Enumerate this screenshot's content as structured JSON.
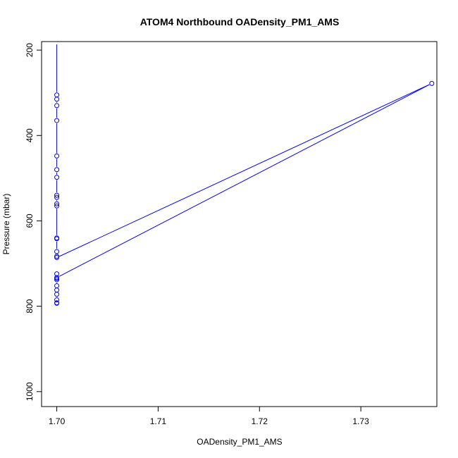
{
  "chart_data": {
    "type": "scatter",
    "title": "ATOM4 Northbound OADensity_PM1_AMS",
    "xlabel": "OADensity_PM1_AMS",
    "ylabel": "Pressure (mbar)",
    "xlim": [
      1.6985,
      1.7375
    ],
    "ylim": [
      1035,
      180
    ],
    "y_reversed": true,
    "x_ticks": [
      1.7,
      1.71,
      1.72,
      1.73
    ],
    "x_tick_labels": [
      "1.70",
      "1.71",
      "1.72",
      "1.73"
    ],
    "y_ticks": [
      200,
      400,
      600,
      800,
      1000
    ],
    "y_tick_labels": [
      "200",
      "400",
      "600",
      "800",
      "1000"
    ],
    "grid": false,
    "series": [
      {
        "color": "#0000ff",
        "marker": "open-circle",
        "line": true,
        "points": [
          {
            "x": 1.7,
            "y": 180
          },
          {
            "x": 1.7,
            "y": 305
          },
          {
            "x": 1.7,
            "y": 315
          },
          {
            "x": 1.7,
            "y": 330
          },
          {
            "x": 1.7,
            "y": 365
          },
          {
            "x": 1.7,
            "y": 448
          },
          {
            "x": 1.7,
            "y": 480
          },
          {
            "x": 1.7,
            "y": 498
          },
          {
            "x": 1.7,
            "y": 540
          },
          {
            "x": 1.7,
            "y": 545
          },
          {
            "x": 1.7,
            "y": 560
          },
          {
            "x": 1.7,
            "y": 565
          },
          {
            "x": 1.7,
            "y": 640
          },
          {
            "x": 1.7,
            "y": 642
          },
          {
            "x": 1.7,
            "y": 672
          },
          {
            "x": 1.7,
            "y": 683
          },
          {
            "x": 1.7,
            "y": 686
          },
          {
            "x": 1.737,
            "y": 278
          },
          {
            "x": 1.7,
            "y": 733
          },
          {
            "x": 1.7,
            "y": 724
          },
          {
            "x": 1.7,
            "y": 735
          },
          {
            "x": 1.7,
            "y": 738
          },
          {
            "x": 1.7,
            "y": 752
          },
          {
            "x": 1.7,
            "y": 762
          },
          {
            "x": 1.7,
            "y": 772
          },
          {
            "x": 1.7,
            "y": 785
          },
          {
            "x": 1.7,
            "y": 792
          },
          {
            "x": 1.7,
            "y": 793
          }
        ]
      }
    ]
  }
}
